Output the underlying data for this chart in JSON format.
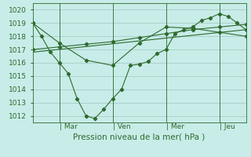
{
  "xlabel": "Pression niveau de la mer( hPa )",
  "bg_color": "#c8ece8",
  "grid_color": "#a0c8c0",
  "line_color": "#2d6a2d",
  "ylim": [
    1011.5,
    1020.5
  ],
  "yticks": [
    1012,
    1013,
    1014,
    1015,
    1016,
    1017,
    1018,
    1019,
    1020
  ],
  "xlim": [
    0,
    96
  ],
  "xtick_labels": [
    "| Mar",
    "| Ven",
    "| Mer",
    "| Jeu"
  ],
  "xtick_positions": [
    12,
    36,
    60,
    84
  ],
  "vlines": [
    12,
    36,
    60,
    84
  ],
  "series1_x": [
    0,
    4,
    8,
    12,
    16,
    20,
    24,
    28,
    32,
    36,
    40,
    44,
    48,
    52,
    56,
    60,
    64,
    68,
    72,
    76,
    80,
    84,
    88,
    92,
    96
  ],
  "series1_y": [
    1019.0,
    1018.0,
    1016.8,
    1016.0,
    1015.2,
    1013.3,
    1012.0,
    1011.8,
    1012.5,
    1013.3,
    1014.0,
    1015.8,
    1015.9,
    1016.1,
    1016.7,
    1017.0,
    1018.2,
    1018.5,
    1018.7,
    1019.2,
    1019.4,
    1019.7,
    1019.5,
    1019.0,
    1018.5
  ],
  "series2_x": [
    0,
    12,
    24,
    36,
    48,
    60,
    72,
    84,
    96
  ],
  "series2_y": [
    1017.0,
    1017.2,
    1017.4,
    1017.6,
    1017.9,
    1018.2,
    1018.5,
    1018.7,
    1018.9
  ],
  "series3_x": [
    0,
    12,
    24,
    36,
    48,
    60,
    72,
    84,
    96
  ],
  "series3_y": [
    1019.0,
    1017.5,
    1016.2,
    1015.8,
    1017.5,
    1018.7,
    1018.6,
    1018.3,
    1018.0
  ],
  "series4_x": [
    0,
    96
  ],
  "series4_y": [
    1016.8,
    1018.5
  ]
}
